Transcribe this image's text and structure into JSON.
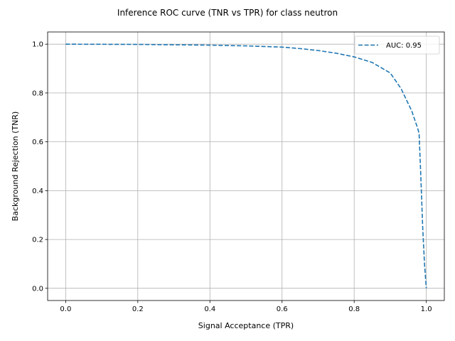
{
  "chart_data": {
    "type": "line",
    "title": "Inference ROC curve (TNR vs TPR) for class neutron",
    "xlabel": "Signal Acceptance (TPR)",
    "ylabel": "Background Rejection (TNR)",
    "xlim": [
      -0.05,
      1.05
    ],
    "ylim": [
      -0.05,
      1.05
    ],
    "xticks": [
      0.0,
      0.2,
      0.4,
      0.6,
      0.8,
      1.0
    ],
    "yticks": [
      0.0,
      0.2,
      0.4,
      0.6,
      0.8,
      1.0
    ],
    "xtick_labels": [
      "0.0",
      "0.2",
      "0.4",
      "0.6",
      "0.8",
      "1.0"
    ],
    "ytick_labels": [
      "0.0",
      "0.2",
      "0.4",
      "0.6",
      "0.8",
      "1.0"
    ],
    "grid": true,
    "legend_position": "top-right",
    "series": [
      {
        "name": "AUC: 0.95",
        "color": "#1f77b4",
        "line_style": "dashed",
        "x": [
          0.0,
          0.2,
          0.4,
          0.5,
          0.6,
          0.65,
          0.7,
          0.75,
          0.8,
          0.85,
          0.9,
          0.93,
          0.96,
          0.975,
          0.98,
          0.985,
          0.99,
          0.995,
          1.0
        ],
        "y": [
          1.0,
          0.999,
          0.996,
          0.993,
          0.988,
          0.982,
          0.974,
          0.963,
          0.948,
          0.925,
          0.882,
          0.818,
          0.725,
          0.66,
          0.635,
          0.45,
          0.25,
          0.1,
          0.0
        ]
      }
    ]
  }
}
